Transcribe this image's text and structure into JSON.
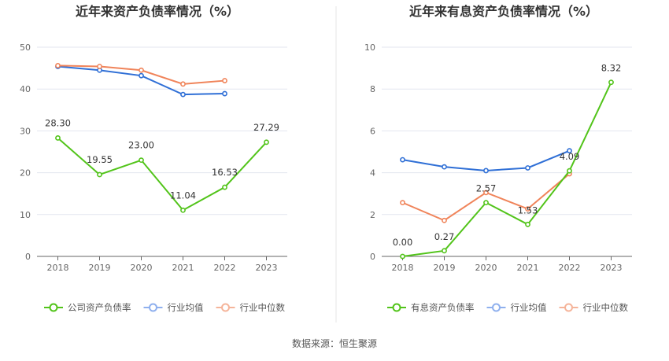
{
  "source_label": "数据来源：恒生聚源",
  "chart_data": [
    {
      "type": "line",
      "title": "近年来资产负债率情况（%）",
      "categories": [
        "2018",
        "2019",
        "2020",
        "2021",
        "2022",
        "2023"
      ],
      "ylim": [
        0,
        50
      ],
      "yticks": [
        "0",
        "10",
        "20",
        "30",
        "40",
        "50"
      ],
      "grid": true,
      "legend_position": "bottom",
      "series": [
        {
          "name": "公司资产负债率",
          "color": "#52c41a",
          "values": [
            28.3,
            19.55,
            23.0,
            11.04,
            16.53,
            27.29
          ],
          "labels": [
            "28.30",
            "19.55",
            "23.00",
            "11.04",
            "16.53",
            "27.29"
          ]
        },
        {
          "name": "行业均值",
          "color": "#2f6fd6",
          "values": [
            45.4,
            44.5,
            43.2,
            38.7,
            38.9,
            null
          ]
        },
        {
          "name": "行业中位数",
          "color": "#f0845a",
          "values": [
            45.6,
            45.4,
            44.5,
            41.2,
            42.0,
            null
          ]
        }
      ]
    },
    {
      "type": "line",
      "title": "近年来有息资产负债率情况（%）",
      "categories": [
        "2018",
        "2019",
        "2020",
        "2021",
        "2022",
        "2023"
      ],
      "ylim": [
        0,
        10
      ],
      "yticks": [
        "0",
        "2",
        "4",
        "6",
        "8",
        "10"
      ],
      "grid": true,
      "legend_position": "bottom",
      "series": [
        {
          "name": "有息资产负债率",
          "color": "#52c41a",
          "values": [
            0.0,
            0.27,
            2.57,
            1.53,
            4.09,
            8.32
          ],
          "labels": [
            "0.00",
            "0.27",
            "2.57",
            "1.53",
            "4.09",
            "8.32"
          ]
        },
        {
          "name": "行业均值",
          "color": "#2f6fd6",
          "values": [
            4.62,
            4.28,
            4.1,
            4.23,
            5.05,
            null
          ]
        },
        {
          "name": "行业中位数",
          "color": "#f0845a",
          "values": [
            2.57,
            1.72,
            3.05,
            2.27,
            3.95,
            null
          ]
        }
      ]
    }
  ]
}
